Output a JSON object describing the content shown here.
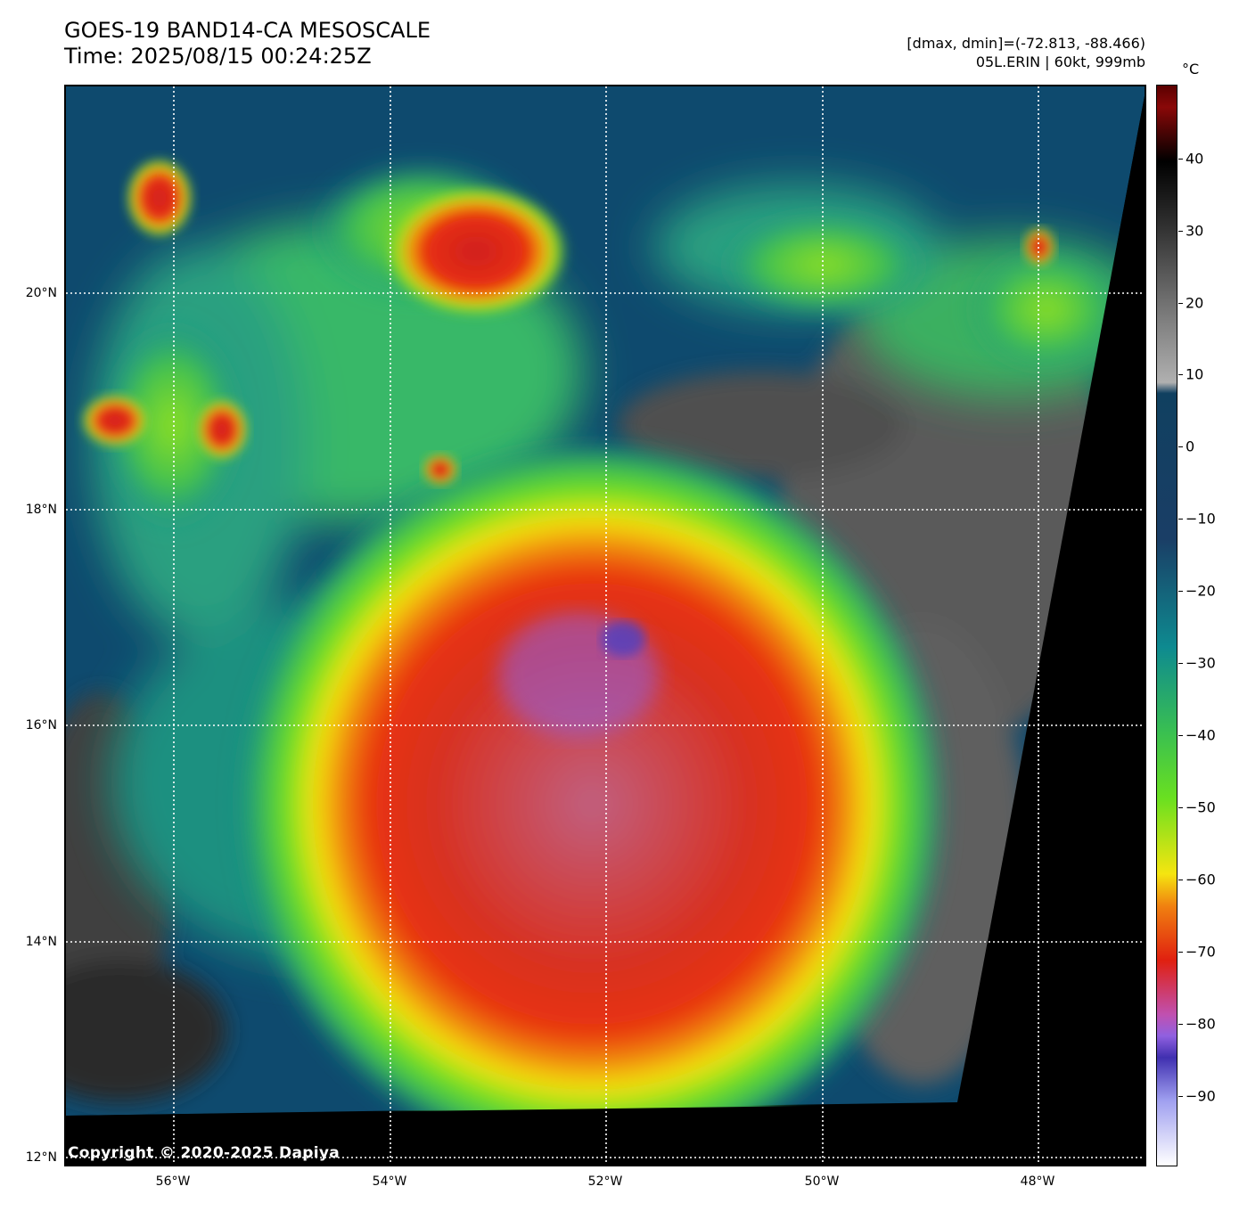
{
  "title": {
    "line1": "GOES-19 BAND14-CA MESOSCALE",
    "line2": "Time: 2025/08/15 00:24:25Z"
  },
  "info": {
    "range": "[dmax, dmin]=(-72.813, -88.466)",
    "storm": "05L.ERIN | 60kt, 999mb"
  },
  "map": {
    "lat_labels": [
      "20°N",
      "18°N",
      "16°N",
      "14°N",
      "12°N"
    ],
    "lon_labels": [
      "56°W",
      "54°W",
      "52°W",
      "50°W",
      "48°W"
    ],
    "copyright": "Copyright © 2020-2025 Dapiya"
  },
  "colorbar": {
    "unit": "°C",
    "labels": [
      "40",
      "30",
      "20",
      "10",
      "0",
      "−10",
      "−20",
      "−30",
      "−40",
      "−50",
      "−60",
      "−70",
      "−80",
      "−90"
    ]
  },
  "colors": {
    "cold_top": "#e02010",
    "overshoot": "#9060e0",
    "clear_sky": "#104060"
  }
}
